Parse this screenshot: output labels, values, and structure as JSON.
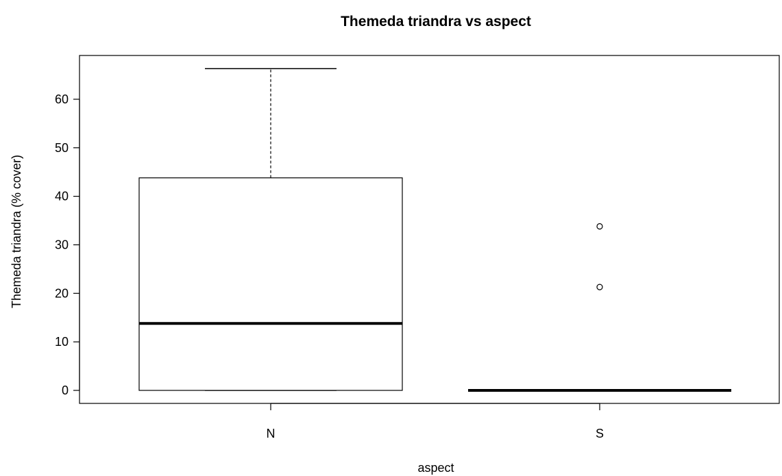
{
  "chart_data": {
    "type": "boxplot",
    "title": "Themeda triandra vs aspect",
    "xlabel": "aspect",
    "ylabel": "Themeda triandra (% cover)",
    "categories": [
      "N",
      "S"
    ],
    "boxes": [
      {
        "category": "N",
        "min": 0,
        "q1": 0,
        "median": 13.8,
        "q3": 43.8,
        "max": 66.3,
        "outliers": []
      },
      {
        "category": "S",
        "min": 0,
        "q1": 0,
        "median": 0,
        "q3": 0,
        "max": 0,
        "outliers": [
          21.3,
          33.8
        ]
      }
    ],
    "yticks": [
      0,
      10,
      20,
      30,
      40,
      50,
      60
    ],
    "ylim": [
      -2.7,
      69
    ],
    "grid": false,
    "legend": "none"
  }
}
